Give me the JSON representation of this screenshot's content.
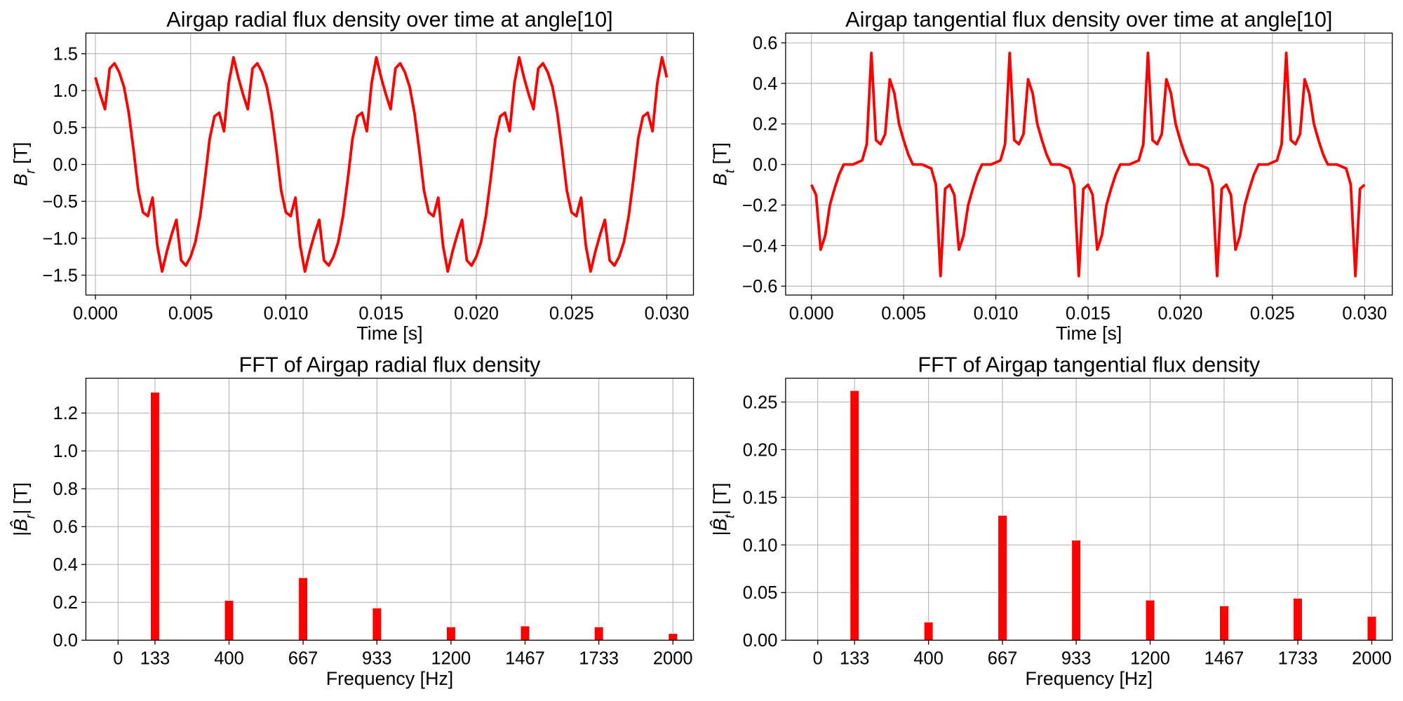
{
  "chart_data": [
    {
      "type": "line",
      "title": "Airgap radial flux density over time at angle[10]",
      "xlabel": "Time [s]",
      "ylabel": [
        {
          "text": "B",
          "style": "italic"
        },
        {
          "text": "r",
          "style": "sub"
        },
        {
          "text": " [T]"
        }
      ],
      "color": "#ff0000",
      "grid": true,
      "xlim": [
        -0.0005,
        0.0314
      ],
      "ylim": [
        -1.77,
        1.78
      ],
      "xticks": [
        {
          "value": 0,
          "label": "0.000"
        },
        {
          "value": 0.005,
          "label": "0.005"
        },
        {
          "value": 0.01,
          "label": "0.010"
        },
        {
          "value": 0.015,
          "label": "0.015"
        },
        {
          "value": 0.02,
          "label": "0.020"
        },
        {
          "value": 0.025,
          "label": "0.025"
        },
        {
          "value": 0.03,
          "label": "0.030"
        }
      ],
      "yticks": [
        {
          "value": -1.5,
          "label": "−1.5"
        },
        {
          "value": -1,
          "label": "−1.0"
        },
        {
          "value": -0.5,
          "label": "−0.5"
        },
        {
          "value": 0,
          "label": "0.0"
        },
        {
          "value": 0.5,
          "label": "0.5"
        },
        {
          "value": 1,
          "label": "1.0"
        },
        {
          "value": 1.5,
          "label": "1.5"
        }
      ],
      "x": [
        0,
        0.00025,
        0.0005,
        0.00075,
        0.001,
        0.00125,
        0.0015,
        0.00175,
        0.002,
        0.00225,
        0.0025,
        0.00275,
        0.003,
        0.00325,
        0.0035,
        0.00375,
        0.004,
        0.00425,
        0.0045,
        0.00475,
        0.005,
        0.00525,
        0.0055,
        0.00575,
        0.006,
        0.00625,
        0.0065,
        0.00675,
        0.007,
        0.00725,
        0.0075,
        0.00775,
        0.008,
        0.00825,
        0.0085,
        0.00875,
        0.009,
        0.00925,
        0.0095,
        0.00975,
        0.01,
        0.01025,
        0.0105,
        0.01075,
        0.011,
        0.01125,
        0.0115,
        0.01175,
        0.012,
        0.01225,
        0.0125,
        0.01275,
        0.013,
        0.01325,
        0.0135,
        0.01375,
        0.014,
        0.01425,
        0.0145,
        0.01475,
        0.015,
        0.01525,
        0.0155,
        0.01575,
        0.016,
        0.01625,
        0.0165,
        0.01675,
        0.017,
        0.01725,
        0.0175,
        0.01775,
        0.018,
        0.01825,
        0.0185,
        0.01875,
        0.019,
        0.01925,
        0.0195,
        0.01975,
        0.02,
        0.02025,
        0.0205,
        0.02075,
        0.021,
        0.02125,
        0.0215,
        0.02175,
        0.022,
        0.02225,
        0.0225,
        0.02275,
        0.023,
        0.02325,
        0.0235,
        0.02375,
        0.024,
        0.02425,
        0.0245,
        0.02475,
        0.025,
        0.02525,
        0.0255,
        0.02575,
        0.026,
        0.02625,
        0.0265,
        0.02675,
        0.027,
        0.02725,
        0.0275,
        0.02775,
        0.028,
        0.02825,
        0.0285,
        0.02875,
        0.029,
        0.02925,
        0.0295,
        0.02975,
        0.03
      ],
      "values": [
        1.18,
        0.95,
        0.75,
        1.3,
        1.37,
        1.25,
        1.05,
        0.7,
        0.2,
        -0.35,
        -0.65,
        -0.7,
        -0.45,
        -1.1,
        -1.45,
        -1.18,
        -0.95,
        -0.75,
        -1.3,
        -1.37,
        -1.25,
        -1.05,
        -0.7,
        -0.2,
        0.35,
        0.65,
        0.7,
        0.45,
        1.1,
        1.45,
        1.18,
        0.95,
        0.75,
        1.3,
        1.37,
        1.25,
        1.05,
        0.7,
        0.2,
        -0.35,
        -0.65,
        -0.7,
        -0.45,
        -1.1,
        -1.45,
        -1.18,
        -0.95,
        -0.75,
        -1.3,
        -1.37,
        -1.25,
        -1.05,
        -0.7,
        -0.2,
        0.35,
        0.65,
        0.7,
        0.45,
        1.1,
        1.45,
        1.18,
        0.95,
        0.75,
        1.3,
        1.37,
        1.25,
        1.05,
        0.7,
        0.2,
        -0.35,
        -0.65,
        -0.7,
        -0.45,
        -1.1,
        -1.45,
        -1.18,
        -0.95,
        -0.75,
        -1.3,
        -1.37,
        -1.25,
        -1.05,
        -0.7,
        -0.2,
        0.35,
        0.65,
        0.7,
        0.45,
        1.1,
        1.45,
        1.18,
        0.95,
        0.75,
        1.3,
        1.37,
        1.25,
        1.05,
        0.7,
        0.2,
        -0.35,
        -0.65,
        -0.7,
        -0.45,
        -1.1,
        -1.45,
        -1.18,
        -0.95,
        -0.75,
        -1.3,
        -1.37,
        -1.25,
        -1.05,
        -0.7,
        -0.2,
        0.35,
        0.65,
        0.7,
        0.45,
        1.1,
        1.45,
        1.18
      ]
    },
    {
      "type": "line",
      "title": "Airgap tangential flux density over time at angle[10]",
      "xlabel": "Time [s]",
      "ylabel": [
        {
          "text": "B",
          "style": "italic"
        },
        {
          "text": "t",
          "style": "sub"
        },
        {
          "text": " [T]"
        }
      ],
      "color": "#ff0000",
      "grid": true,
      "xlim": [
        -0.0014,
        0.0315
      ],
      "ylim": [
        -0.644,
        0.648
      ],
      "xticks": [
        {
          "value": 0,
          "label": "0.000"
        },
        {
          "value": 0.005,
          "label": "0.005"
        },
        {
          "value": 0.01,
          "label": "0.010"
        },
        {
          "value": 0.015,
          "label": "0.015"
        },
        {
          "value": 0.02,
          "label": "0.020"
        },
        {
          "value": 0.025,
          "label": "0.025"
        },
        {
          "value": 0.03,
          "label": "0.030"
        }
      ],
      "yticks": [
        {
          "value": -0.6,
          "label": "−0.6"
        },
        {
          "value": -0.4,
          "label": "−0.4"
        },
        {
          "value": -0.2,
          "label": "−0.2"
        },
        {
          "value": 0,
          "label": "0.0"
        },
        {
          "value": 0.2,
          "label": "0.2"
        },
        {
          "value": 0.4,
          "label": "0.4"
        },
        {
          "value": 0.6,
          "label": "0.6"
        }
      ],
      "x": [
        0,
        0.00025,
        0.0005,
        0.00075,
        0.001,
        0.00125,
        0.0015,
        0.00175,
        0.002,
        0.00225,
        0.0025,
        0.00275,
        0.003,
        0.00325,
        0.0035,
        0.00375,
        0.004,
        0.00425,
        0.0045,
        0.00475,
        0.005,
        0.00525,
        0.0055,
        0.00575,
        0.006,
        0.00625,
        0.0065,
        0.00675,
        0.007,
        0.00725,
        0.0075,
        0.00775,
        0.008,
        0.00825,
        0.0085,
        0.00875,
        0.009,
        0.00925,
        0.0095,
        0.00975,
        0.01,
        0.01025,
        0.0105,
        0.01075,
        0.011,
        0.01125,
        0.0115,
        0.01175,
        0.012,
        0.01225,
        0.0125,
        0.01275,
        0.013,
        0.01325,
        0.0135,
        0.01375,
        0.014,
        0.01425,
        0.0145,
        0.01475,
        0.015,
        0.01525,
        0.0155,
        0.01575,
        0.016,
        0.01625,
        0.0165,
        0.01675,
        0.017,
        0.01725,
        0.0175,
        0.01775,
        0.018,
        0.01825,
        0.0185,
        0.01875,
        0.019,
        0.01925,
        0.0195,
        0.01975,
        0.02,
        0.02025,
        0.0205,
        0.02075,
        0.021,
        0.02125,
        0.0215,
        0.02175,
        0.022,
        0.02225,
        0.0225,
        0.02275,
        0.023,
        0.02325,
        0.0235,
        0.02375,
        0.024,
        0.02425,
        0.0245,
        0.02475,
        0.025,
        0.02525,
        0.0255,
        0.02575,
        0.026,
        0.02625,
        0.0265,
        0.02675,
        0.027,
        0.02725,
        0.0275,
        0.02775,
        0.028,
        0.02825,
        0.0285,
        0.02875,
        0.029,
        0.02925,
        0.0295,
        0.02975,
        0.03
      ],
      "values": [
        -0.1,
        -0.15,
        -0.42,
        -0.35,
        -0.2,
        -0.12,
        -0.05,
        0,
        0,
        0,
        0.01,
        0.02,
        0.1,
        0.55,
        0.12,
        0.1,
        0.15,
        0.42,
        0.35,
        0.2,
        0.12,
        0.05,
        0,
        0,
        0,
        -0.01,
        -0.02,
        -0.1,
        -0.55,
        -0.12,
        -0.1,
        -0.15,
        -0.42,
        -0.35,
        -0.2,
        -0.12,
        -0.05,
        0,
        0,
        0,
        0.01,
        0.02,
        0.1,
        0.55,
        0.12,
        0.1,
        0.15,
        0.42,
        0.35,
        0.2,
        0.12,
        0.05,
        0,
        0,
        0,
        -0.01,
        -0.02,
        -0.1,
        -0.55,
        -0.12,
        -0.1,
        -0.15,
        -0.42,
        -0.35,
        -0.2,
        -0.12,
        -0.05,
        0,
        0,
        0,
        0.01,
        0.02,
        0.1,
        0.55,
        0.12,
        0.1,
        0.15,
        0.42,
        0.35,
        0.2,
        0.12,
        0.05,
        0,
        0,
        0,
        -0.01,
        -0.02,
        -0.1,
        -0.55,
        -0.12,
        -0.1,
        -0.15,
        -0.42,
        -0.35,
        -0.2,
        -0.12,
        -0.05,
        0,
        0,
        0,
        0.01,
        0.02,
        0.1,
        0.55,
        0.12,
        0.1,
        0.15,
        0.42,
        0.35,
        0.2,
        0.12,
        0.05,
        0,
        0,
        0,
        -0.01,
        -0.02,
        -0.1,
        -0.55,
        -0.12,
        -0.1
      ]
    },
    {
      "type": "bar",
      "title": "FFT of Airgap radial flux density",
      "xlabel": "Frequency [Hz]",
      "ylabel": [
        {
          "text": "|"
        },
        {
          "text": "B̂",
          "style": "italic"
        },
        {
          "text": "r",
          "style": "sub"
        },
        {
          "text": "| [T]"
        }
      ],
      "color": "#ff0000",
      "grid": true,
      "xlim": [
        -116,
        2074
      ],
      "ylim": [
        0,
        1.384
      ],
      "xticks": [
        0,
        133,
        400,
        667,
        933,
        1200,
        1467,
        1733,
        2000
      ],
      "yticks": [
        {
          "value": 0,
          "label": "0.0"
        },
        0.2,
        0.4,
        0.6,
        0.8,
        {
          "value": 1,
          "label": "1.0"
        },
        1.2
      ],
      "x": [
        133,
        400,
        667,
        933,
        1200,
        1467,
        1733,
        2000
      ],
      "values": [
        1.31,
        0.21,
        0.33,
        0.17,
        0.07,
        0.075,
        0.07,
        0.035
      ]
    },
    {
      "type": "bar",
      "title": "FFT of Airgap tangential flux density",
      "xlabel": "Frequency [Hz]",
      "ylabel": [
        {
          "text": "|"
        },
        {
          "text": "B̂",
          "style": "italic"
        },
        {
          "text": "t",
          "style": "sub"
        },
        {
          "text": "| [T]"
        }
      ],
      "color": "#ff0000",
      "grid": true,
      "xlim": [
        -116,
        2074
      ],
      "ylim": [
        0,
        0.275
      ],
      "xticks": [
        0,
        133,
        400,
        667,
        933,
        1200,
        1467,
        1733,
        2000
      ],
      "yticks": [
        {
          "value": 0,
          "label": "0.00"
        },
        0.05,
        {
          "value": 0.1,
          "label": "0.10"
        },
        0.15,
        {
          "value": 0.2,
          "label": "0.20"
        },
        0.25
      ],
      "x": [
        133,
        400,
        667,
        933,
        1200,
        1467,
        1733,
        2000
      ],
      "values": [
        0.262,
        0.019,
        0.131,
        0.105,
        0.042,
        0.036,
        0.044,
        0.025
      ]
    }
  ]
}
